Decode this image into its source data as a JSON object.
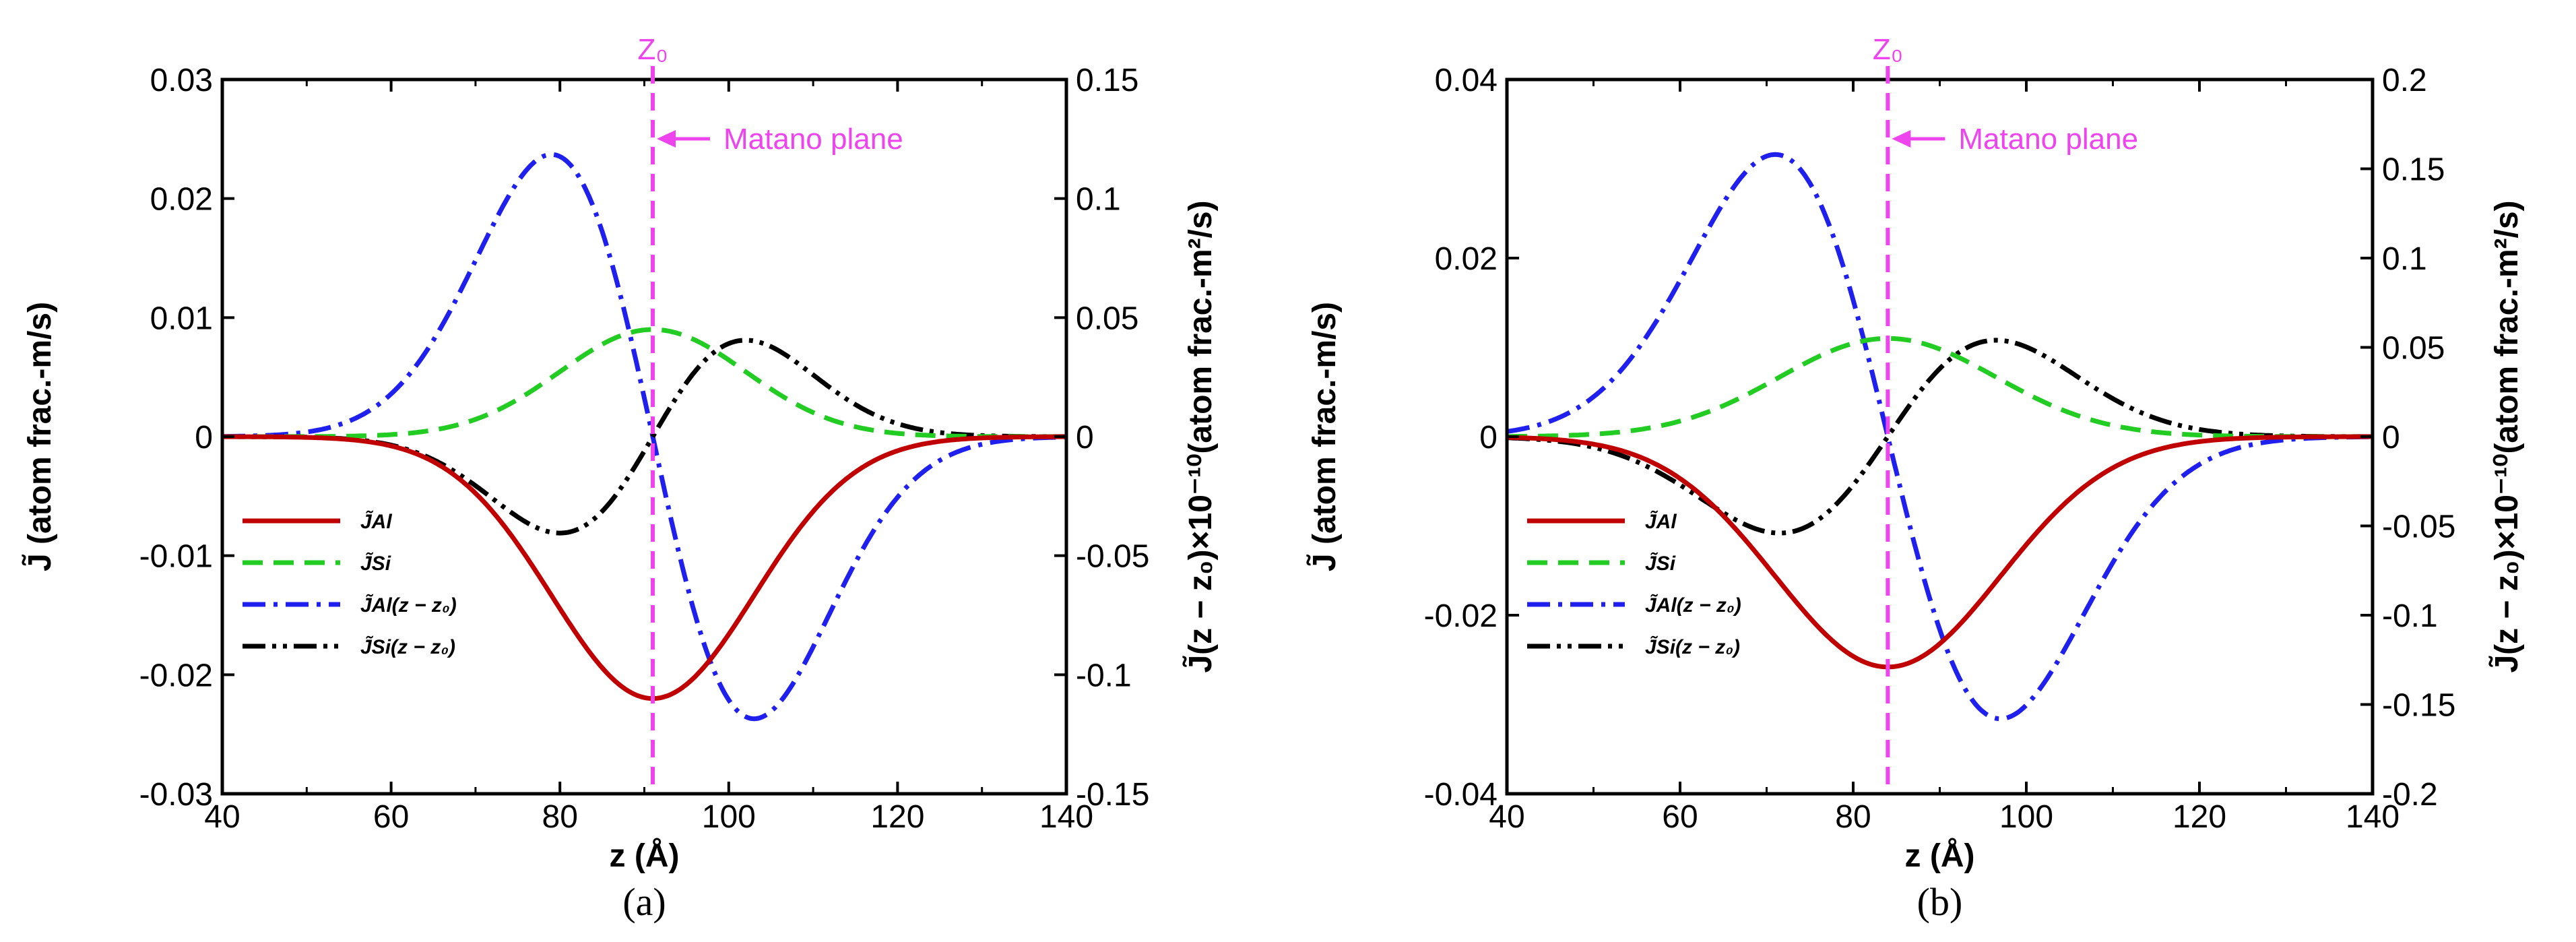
{
  "colors": {
    "al": "#c00000",
    "si": "#22cc22",
    "al_moment": "#2020ee",
    "si_moment": "#000000",
    "matano": "#ee44ee"
  },
  "chart_data": [
    {
      "type": "line",
      "panel_label": "a",
      "caption": "(a)",
      "xlabel": "z (Å)",
      "ylabel_left": "J̃ (atom frac.-m/s)",
      "ylabel_right": "J̃(z − z₀)×10⁻¹⁰(atom frac.-m²/s)",
      "xlim": [
        40,
        140
      ],
      "ylim_left": [
        -0.03,
        0.03
      ],
      "ylim_right": [
        -0.15,
        0.15
      ],
      "xticks": [
        "40",
        "60",
        "80",
        "100",
        "120",
        "140"
      ],
      "yticks_left": [
        "0.03",
        "0.02",
        "0.01",
        "0",
        "-0.01",
        "-0.02",
        "-0.03"
      ],
      "yticks_right": [
        "0.15",
        "0.1",
        "0.05",
        "0",
        "-0.05",
        "-0.1",
        "-0.15"
      ],
      "z0": 91,
      "z0_label": "Z₀",
      "matano_label": "Matano plane",
      "params": {
        "al_amp": -0.022,
        "al_sigma": 12,
        "si_amp": 0.009,
        "si_sigma": 11
      },
      "series": [
        {
          "name": "J̃Al",
          "key": "al",
          "axis": "left",
          "dash": "solid"
        },
        {
          "name": "J̃Si",
          "key": "si",
          "axis": "left",
          "dash": "dash"
        },
        {
          "name": "J̃Al(z − z₀)",
          "key": "al_moment",
          "axis": "right",
          "dash": "dashdot"
        },
        {
          "name": "J̃Si(z − z₀)",
          "key": "si_moment",
          "axis": "right",
          "dash": "dashdotdot"
        }
      ]
    },
    {
      "type": "line",
      "panel_label": "b",
      "caption": "(b)",
      "xlabel": "z (Å)",
      "ylabel_left": "J̃ (atom frac.-m/s)",
      "ylabel_right": "J̃(z − z₀)×10⁻¹⁰(atom frac.-m²/s)",
      "xlim": [
        40,
        140
      ],
      "ylim_left": [
        -0.04,
        0.04
      ],
      "ylim_right": [
        -0.2,
        0.2
      ],
      "xticks": [
        "40",
        "60",
        "80",
        "100",
        "120",
        "140"
      ],
      "yticks_left": [
        "0.04",
        "0.02",
        "0",
        "-0.02",
        "-0.04"
      ],
      "yticks_right": [
        "0.2",
        "0.15",
        "0.1",
        "0.05",
        "0",
        "-0.05",
        "-0.1",
        "-0.15",
        "-0.2"
      ],
      "z0": 84,
      "z0_label": "Z₀",
      "matano_label": "Matano plane",
      "params": {
        "al_amp": -0.0258,
        "al_sigma": 13,
        "si_amp": 0.011,
        "si_sigma": 12.5
      },
      "series": [
        {
          "name": "J̃Al",
          "key": "al",
          "axis": "left",
          "dash": "solid"
        },
        {
          "name": "J̃Si",
          "key": "si",
          "axis": "left",
          "dash": "dash"
        },
        {
          "name": "J̃Al(z − z₀)",
          "key": "al_moment",
          "axis": "right",
          "dash": "dashdot"
        },
        {
          "name": "J̃Si(z − z₀)",
          "key": "si_moment",
          "axis": "right",
          "dash": "dashdotdot"
        }
      ]
    }
  ]
}
